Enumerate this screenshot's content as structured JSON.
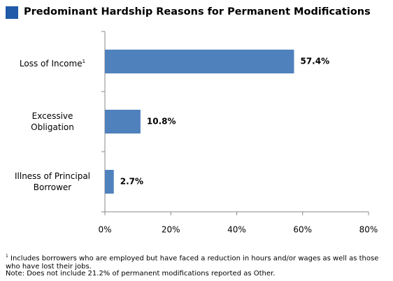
{
  "chart_data": {
    "type": "bar",
    "orientation": "horizontal",
    "title": "Predominant Hardship Reasons for Permanent Modifications",
    "categories": [
      "Loss of Income",
      "Excessive\nObligation",
      "Illness of Principal\nBorrower"
    ],
    "category_notes": [
      "1",
      null,
      null
    ],
    "values": [
      57.4,
      10.8,
      2.7
    ],
    "value_labels": [
      "57.4%",
      "10.8%",
      "2.7%"
    ],
    "color": "#4f81bd",
    "xlim": [
      0,
      80
    ],
    "xticks": [
      {
        "value": 0,
        "label": "0%"
      },
      {
        "value": 20,
        "label": "20%"
      },
      {
        "value": 40,
        "label": "40%"
      },
      {
        "value": 60,
        "label": "60%"
      },
      {
        "value": 80,
        "label": "80%"
      }
    ],
    "footnotes": [
      {
        "mark": "1",
        "text": "Includes borrowers who are employed but have faced a reduction in hours and/or wages as well as those who have lost their jobs."
      },
      {
        "text": "Note: Does not include 21.2% of permanent modifications reported as Other."
      }
    ]
  }
}
